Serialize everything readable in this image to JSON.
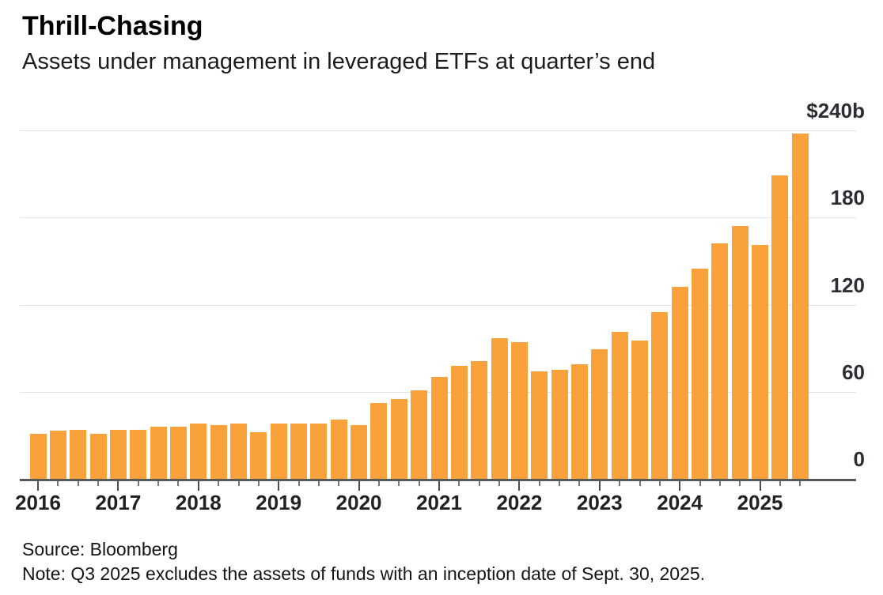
{
  "header": {
    "title": "Thrill-Chasing",
    "subtitle": "Assets under management in leveraged ETFs at quarter’s end"
  },
  "footer": {
    "source": "Source: Bloomberg",
    "note": "Note: Q3 2025 excludes the assets of funds with an inception date of Sept. 30, 2025."
  },
  "chart_data": {
    "type": "bar",
    "title": "Thrill-Chasing",
    "subtitle": "Assets under management in leveraged ETFs at quarter’s end",
    "series_name": "Leveraged ETF assets under management ($b)",
    "categories": [
      "Q1 2016",
      "Q2 2016",
      "Q3 2016",
      "Q4 2016",
      "Q1 2017",
      "Q2 2017",
      "Q3 2017",
      "Q4 2017",
      "Q1 2018",
      "Q2 2018",
      "Q3 2018",
      "Q4 2018",
      "Q1 2019",
      "Q2 2019",
      "Q3 2019",
      "Q4 2019",
      "Q1 2020",
      "Q2 2020",
      "Q3 2020",
      "Q4 2020",
      "Q1 2021",
      "Q2 2021",
      "Q3 2021",
      "Q4 2021",
      "Q1 2022",
      "Q2 2022",
      "Q3 2022",
      "Q4 2022",
      "Q1 2023",
      "Q2 2023",
      "Q3 2023",
      "Q4 2023",
      "Q1 2024",
      "Q2 2024",
      "Q3 2024",
      "Q4 2024",
      "Q1 2025",
      "Q2 2025",
      "Q3 2025"
    ],
    "values": [
      31,
      33,
      34,
      31,
      34,
      34,
      36,
      36,
      38,
      37,
      38,
      32,
      38,
      38,
      38,
      41,
      37,
      52,
      55,
      61,
      70,
      78,
      81,
      97,
      94,
      74,
      75,
      79,
      89,
      101,
      95,
      115,
      132,
      145,
      162,
      174,
      161,
      209,
      238
    ],
    "xlabel": "",
    "ylabel": "",
    "ylim": [
      0,
      240
    ],
    "yticks": [
      {
        "value": 0,
        "label": "0"
      },
      {
        "value": 60,
        "label": "60"
      },
      {
        "value": 120,
        "label": "120"
      },
      {
        "value": 180,
        "label": "180"
      },
      {
        "value": 240,
        "label": "$240b"
      }
    ],
    "year_labels": [
      "2016",
      "2017",
      "2018",
      "2019",
      "2020",
      "2021",
      "2022",
      "2023",
      "2024",
      "2025"
    ],
    "grid": true,
    "legend": false,
    "bar_color": "#F9A23B",
    "gridline_color": "#e2e2e2",
    "axis_color": "#57585a"
  }
}
